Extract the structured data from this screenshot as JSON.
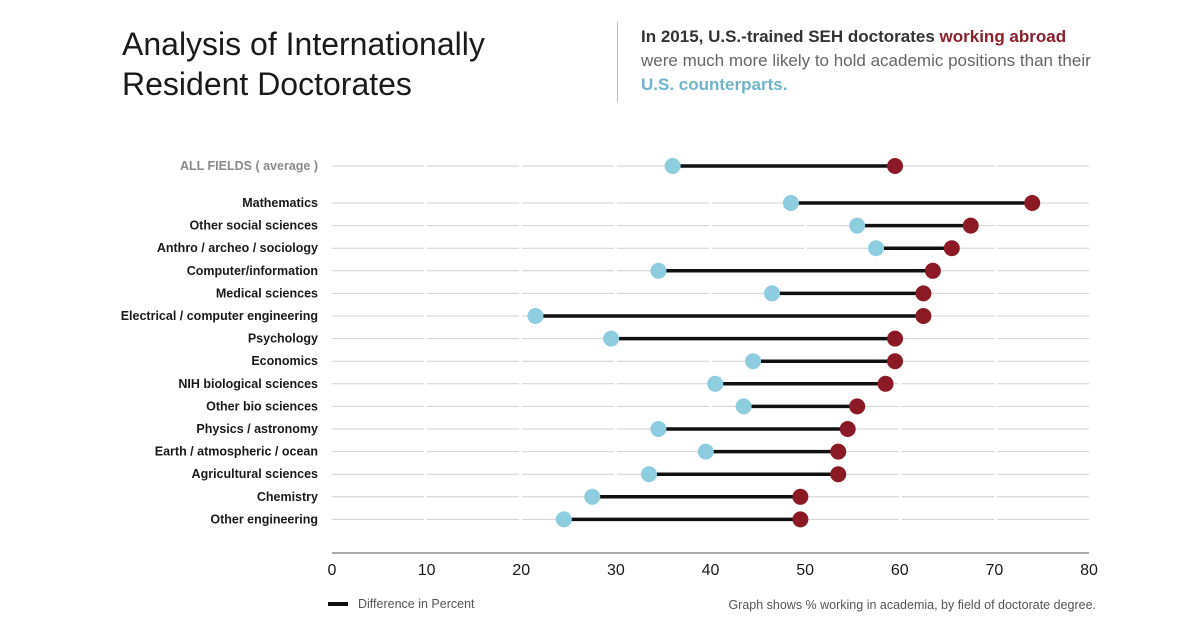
{
  "header": {
    "title_line1": "Analysis of Internationally",
    "title_line2": "Resident Doctorates",
    "subtitle": {
      "part1": "In 2015, U.S.-trained SEH doctorates ",
      "part2": "working abroad",
      "part3": "were much more likely to hold academic positions than their ",
      "part4": "U.S. counterparts."
    }
  },
  "legend": {
    "label": "Difference in Percent"
  },
  "footnote": "Graph shows % working in academia, by field of doctorate degree.",
  "colors": {
    "us": "#8ecde0",
    "abroad": "#8b1a26",
    "line": "#111111",
    "subtitle_red": "#8b1f2c",
    "subtitle_blue": "#6fb4c9"
  },
  "chart_data": {
    "type": "dumbbell",
    "title": "Analysis of Internationally Resident Doctorates",
    "xlabel": "",
    "ylabel": "",
    "xlim": [
      0,
      80
    ],
    "xticks": [
      0,
      10,
      20,
      30,
      40,
      50,
      60,
      70,
      80
    ],
    "grid": true,
    "legend_position": "bottom-left",
    "series": [
      {
        "name": "U.S. counterparts",
        "color": "#8ecde0"
      },
      {
        "name": "working abroad",
        "color": "#8b1a26"
      }
    ],
    "categories": [
      "ALL FIELDS ( average )",
      "Mathematics",
      "Other social sciences",
      "Anthro / archeo / sociology",
      "Computer/information",
      "Medical sciences",
      "Electrical / computer engineering",
      "Psychology",
      "Economics",
      "NIH biological sciences",
      "Other bio sciences",
      "Physics / astronomy",
      "Earth / atmospheric / ocean",
      "Agricultural sciences",
      "Chemistry",
      "Other engineering"
    ],
    "us_values": [
      36,
      48.5,
      55.5,
      57.5,
      34.5,
      46.5,
      21.5,
      29.5,
      44.5,
      40.5,
      43.5,
      34.5,
      39.5,
      33.5,
      27.5,
      24.5
    ],
    "abroad_values": [
      59.5,
      74,
      67.5,
      65.5,
      63.5,
      62.5,
      62.5,
      59.5,
      59.5,
      58.5,
      55.5,
      54.5,
      53.5,
      53.5,
      49.5,
      49.5
    ]
  }
}
